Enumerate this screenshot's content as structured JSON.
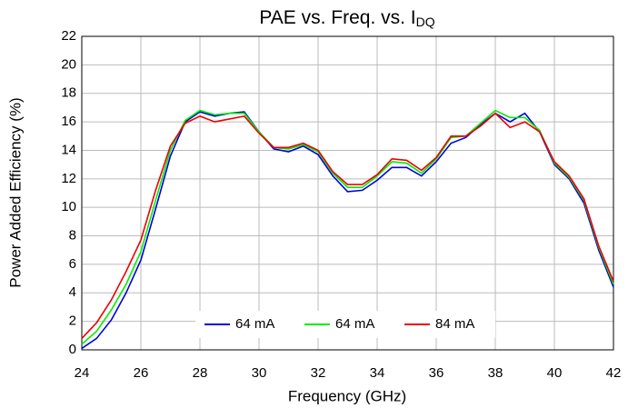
{
  "chart_data": {
    "type": "line",
    "title": "PAE vs. Freq. vs. I",
    "title_subscript": "DQ",
    "x_label": "Frequency (GHz)",
    "y_label": "Power Added Efficiency (%)",
    "x": [
      24,
      24.5,
      25,
      25.5,
      26,
      26.5,
      27,
      27.5,
      28,
      28.5,
      29,
      29.5,
      30,
      30.5,
      31,
      31.5,
      32,
      32.5,
      33,
      33.5,
      34,
      34.5,
      35,
      35.5,
      36,
      36.5,
      37,
      37.5,
      38,
      38.5,
      39,
      39.5,
      40,
      40.5,
      41,
      41.5,
      42
    ],
    "series": [
      {
        "name": "64 mA",
        "color": "#0000dd",
        "values": [
          0.1,
          0.8,
          2.1,
          4.0,
          6.3,
          9.9,
          13.6,
          16.0,
          16.7,
          16.4,
          16.6,
          16.7,
          15.3,
          14.1,
          13.9,
          14.3,
          13.7,
          12.2,
          11.1,
          11.2,
          11.9,
          12.8,
          12.8,
          12.2,
          13.2,
          14.5,
          14.9,
          15.8,
          16.6,
          16.0,
          16.6,
          15.3,
          13.0,
          12.0,
          10.3,
          7.0,
          4.4
        ]
      },
      {
        "name": "64 mA",
        "color": "#00ee00",
        "values": [
          0.4,
          1.3,
          2.8,
          4.6,
          6.9,
          10.5,
          14.0,
          16.1,
          16.8,
          16.5,
          16.6,
          16.6,
          15.3,
          14.2,
          14.1,
          14.4,
          13.9,
          12.4,
          11.4,
          11.4,
          12.2,
          13.2,
          13.1,
          12.4,
          13.4,
          14.9,
          15.0,
          15.9,
          16.8,
          16.3,
          16.3,
          15.4,
          13.1,
          12.1,
          10.5,
          7.2,
          4.6
        ]
      },
      {
        "name": "84 mA",
        "color": "#ee0000",
        "values": [
          0.8,
          1.9,
          3.5,
          5.5,
          7.7,
          11.2,
          14.3,
          15.9,
          16.4,
          16.0,
          16.2,
          16.4,
          15.2,
          14.2,
          14.2,
          14.5,
          14.0,
          12.5,
          11.6,
          11.6,
          12.3,
          13.4,
          13.3,
          12.6,
          13.5,
          15.0,
          15.0,
          15.7,
          16.6,
          15.6,
          16.0,
          15.3,
          13.2,
          12.2,
          10.6,
          7.3,
          4.8
        ]
      }
    ],
    "xlim": [
      24,
      42
    ],
    "xticks": [
      24,
      26,
      28,
      30,
      32,
      34,
      36,
      38,
      40,
      42
    ],
    "ylim": [
      0,
      22
    ],
    "yticks": [
      0,
      2,
      4,
      6,
      8,
      10,
      12,
      14,
      16,
      18,
      20,
      22
    ],
    "grid": true,
    "legend": "bottom"
  }
}
